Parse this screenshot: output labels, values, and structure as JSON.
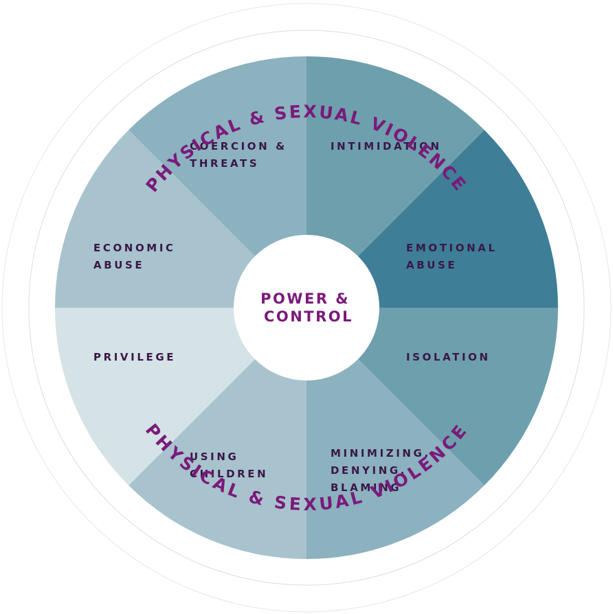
{
  "center_label_lines": [
    "POWER &",
    "CONTROL"
  ],
  "rim_label_top": "PHYSICAL & SEXUAL VIOLENCE",
  "rim_label_bottom": "PHYSICAL & SEXUAL VIOLENCE",
  "segments": [
    {
      "id": "intimidation",
      "lines": [
        "INTIMIDATION"
      ],
      "color": "#6e9fad"
    },
    {
      "id": "emotional-abuse",
      "lines": [
        "EMOTIONAL",
        "ABUSE"
      ],
      "color": "#3e7e96"
    },
    {
      "id": "isolation",
      "lines": [
        "ISOLATION"
      ],
      "color": "#6e9fad"
    },
    {
      "id": "minimizing",
      "lines": [
        "MINIMIZING,",
        "DENYING,",
        "BLAMING"
      ],
      "color": "#8cb1bf"
    },
    {
      "id": "using-children",
      "lines": [
        "USING",
        "CHILDREN"
      ],
      "color": "#a8c3cd"
    },
    {
      "id": "privilege",
      "lines": [
        "PRIVILEGE"
      ],
      "color": "#d5e2e6"
    },
    {
      "id": "economic-abuse",
      "lines": [
        "ECONOMIC",
        "ABUSE"
      ],
      "color": "#a8c3cd"
    },
    {
      "id": "coercion-threats",
      "lines": [
        "COERCION &",
        "THREATS"
      ],
      "color": "#8cb1bf"
    }
  ],
  "colors": {
    "label_text": "#3a1748",
    "accent_purple": "#7a1a7a",
    "outer_ring_stroke": "#dcdcdc",
    "hub_fill": "#ffffff"
  }
}
